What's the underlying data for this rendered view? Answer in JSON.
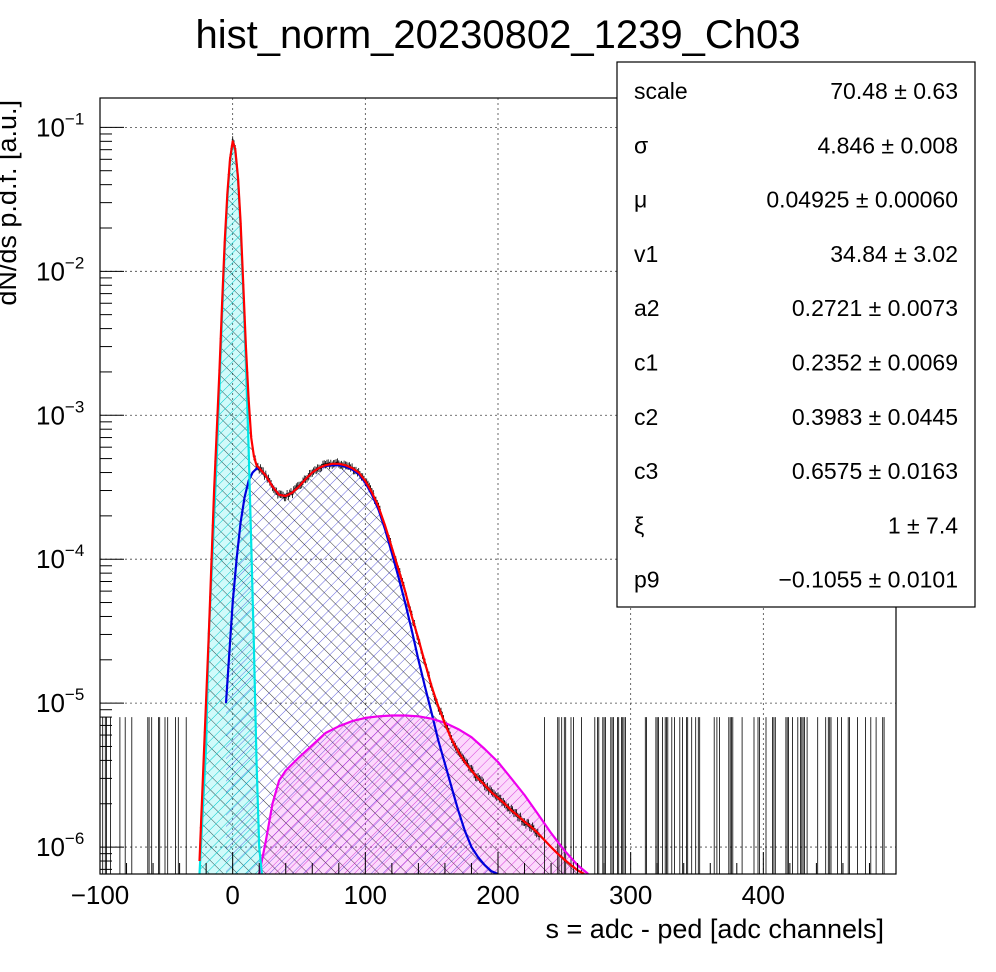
{
  "chart_data": {
    "type": "line",
    "title": "hist_norm_20230802_1239_Ch03",
    "xlabel": "s = adc - ped [adc channels]",
    "ylabel": "dN/ds p.d.f. [a.u.]",
    "xlim": [
      -100,
      500
    ],
    "ylim": [
      6.5e-07,
      0.16
    ],
    "ylog": true,
    "grid": true,
    "xticks": [
      "−100",
      "0",
      "100",
      "200",
      "300",
      "400"
    ],
    "xtick_values": [
      -100,
      0,
      100,
      200,
      300,
      400
    ],
    "yticks": [
      {
        "value": 1e-06,
        "base": "10",
        "exp": "−6"
      },
      {
        "value": 1e-05,
        "base": "10",
        "exp": "−5"
      },
      {
        "value": 0.0001,
        "base": "10",
        "exp": "−4"
      },
      {
        "value": 0.001,
        "base": "10",
        "exp": "−3"
      },
      {
        "value": 0.01,
        "base": "10",
        "exp": "−2"
      },
      {
        "value": 0.1,
        "base": "10",
        "exp": "−1"
      }
    ],
    "series": [
      {
        "color": "#ff0000",
        "fill": "none",
        "x": [
          -25,
          -18,
          -14,
          -10,
          -8,
          -6,
          -4,
          -2,
          0,
          2,
          4,
          6,
          8,
          10,
          12,
          14,
          16,
          18,
          20,
          25,
          30,
          35,
          40,
          45,
          50,
          55,
          60,
          65,
          70,
          75,
          80,
          85,
          90,
          95,
          100,
          105,
          110,
          115,
          120,
          125,
          130,
          135,
          140,
          145,
          150,
          155,
          160,
          165,
          170,
          175,
          180,
          185,
          190,
          195,
          200,
          205,
          210,
          215,
          220,
          225,
          230,
          235,
          240,
          245,
          250,
          255,
          260,
          265
        ],
        "y": [
          8e-07,
          3e-05,
          0.0003,
          0.002,
          0.006,
          0.016,
          0.035,
          0.06,
          0.08,
          0.07,
          0.045,
          0.022,
          0.008,
          0.003,
          0.0013,
          0.0007,
          0.00052,
          0.00045,
          0.00043,
          0.00038,
          0.00032,
          0.00028,
          0.000275,
          0.00029,
          0.00032,
          0.00036,
          0.0004,
          0.00043,
          0.00045,
          0.00046,
          0.00046,
          0.00045,
          0.00043,
          0.0004,
          0.00035,
          0.00029,
          0.00023,
          0.00017,
          0.00012,
          8.5e-05,
          6e-05,
          4e-05,
          2.8e-05,
          1.9e-05,
          1.3e-05,
          9.5e-06,
          7.2e-06,
          5.6e-06,
          4.6e-06,
          3.9e-06,
          3.4e-06,
          3e-06,
          2.7e-06,
          2.4e-06,
          2.2e-06,
          2e-06,
          1.8e-06,
          1.65e-06,
          1.5e-06,
          1.38e-06,
          1.25e-06,
          1.12e-06,
          1e-06,
          9e-07,
          8.2e-07,
          7.5e-07,
          6.9e-07,
          6.5e-07
        ]
      },
      {
        "color": "#00e5e5",
        "fill": "rgba(0,229,229,0.18)",
        "x": [
          -25,
          -20,
          -18,
          -15,
          -12,
          -10,
          -8,
          -6,
          -4,
          -2,
          0,
          2,
          4,
          6,
          8,
          10,
          12,
          14,
          16,
          18,
          20,
          22
        ],
        "y": [
          6.5e-07,
          5e-06,
          3e-05,
          0.00012,
          0.0005,
          0.0015,
          0.005,
          0.014,
          0.032,
          0.058,
          0.078,
          0.068,
          0.044,
          0.02,
          0.007,
          0.0023,
          0.0006,
          0.00013,
          2.5e-05,
          4e-06,
          1e-06,
          6.5e-07
        ]
      },
      {
        "color": "#0000dd",
        "fill": "none",
        "x": [
          -5,
          0,
          3,
          6,
          9,
          12,
          15,
          18,
          20,
          25,
          30,
          35,
          40,
          45,
          50,
          55,
          60,
          65,
          70,
          75,
          80,
          85,
          90,
          95,
          100,
          105,
          110,
          115,
          120,
          125,
          130,
          135,
          140,
          145,
          150,
          155,
          160,
          165,
          170,
          175,
          180,
          185,
          190,
          195,
          200
        ],
        "y": [
          1e-05,
          5e-05,
          0.0001,
          0.00018,
          0.00027,
          0.00035,
          0.0004,
          0.000425,
          0.00043,
          0.00038,
          0.00032,
          0.00028,
          0.000275,
          0.00029,
          0.00032,
          0.00036,
          0.0004,
          0.00043,
          0.000445,
          0.00045,
          0.00045,
          0.00044,
          0.00042,
          0.00039,
          0.00034,
          0.00028,
          0.00022,
          0.00016,
          0.00011,
          7.5e-05,
          5e-05,
          3.2e-05,
          2e-05,
          1.3e-05,
          8.5e-06,
          5.5e-06,
          3.8e-06,
          2.6e-06,
          1.8e-06,
          1.3e-06,
          1e-06,
          8.5e-07,
          7.5e-07,
          6.8e-07,
          6.5e-07
        ]
      },
      {
        "color": "#ee00ee",
        "fill": "rgba(238,0,238,0.15)",
        "x": [
          20,
          25,
          30,
          35,
          40,
          50,
          60,
          70,
          80,
          90,
          100,
          110,
          120,
          130,
          140,
          150,
          160,
          170,
          180,
          190,
          200,
          210,
          220,
          230,
          240,
          250,
          260,
          268
        ],
        "y": [
          6.5e-07,
          1.1e-06,
          2e-06,
          2.9e-06,
          3.4e-06,
          4.2e-06,
          5.1e-06,
          6.2e-06,
          6.9e-06,
          7.5e-06,
          7.9e-06,
          8.1e-06,
          8.2e-06,
          8.2e-06,
          8.1e-06,
          7.8e-06,
          7.3e-06,
          6.6e-06,
          5.8e-06,
          4.8e-06,
          3.9e-06,
          3e-06,
          2.3e-06,
          1.7e-06,
          1.25e-06,
          9.5e-07,
          7.5e-07,
          6.5e-07
        ]
      }
    ]
  },
  "stats": [
    {
      "name": "scale",
      "value": "70.48 ± 0.63"
    },
    {
      "name": "σ",
      "value": "4.846 ± 0.008"
    },
    {
      "name": "μ",
      "value": "0.04925 ± 0.00060"
    },
    {
      "name": "v1",
      "value": "34.84 ± 3.02"
    },
    {
      "name": "a2",
      "value": "0.2721 ± 0.0073"
    },
    {
      "name": "c1",
      "value": "0.2352 ± 0.0069"
    },
    {
      "name": "c2",
      "value": "0.3983 ± 0.0445"
    },
    {
      "name": "c3",
      "value": "0.6575 ± 0.0163"
    },
    {
      "name": "ξ",
      "value": "1 ± 7.4"
    },
    {
      "name": "p9",
      "value": "−0.1055 ± 0.0101"
    }
  ]
}
